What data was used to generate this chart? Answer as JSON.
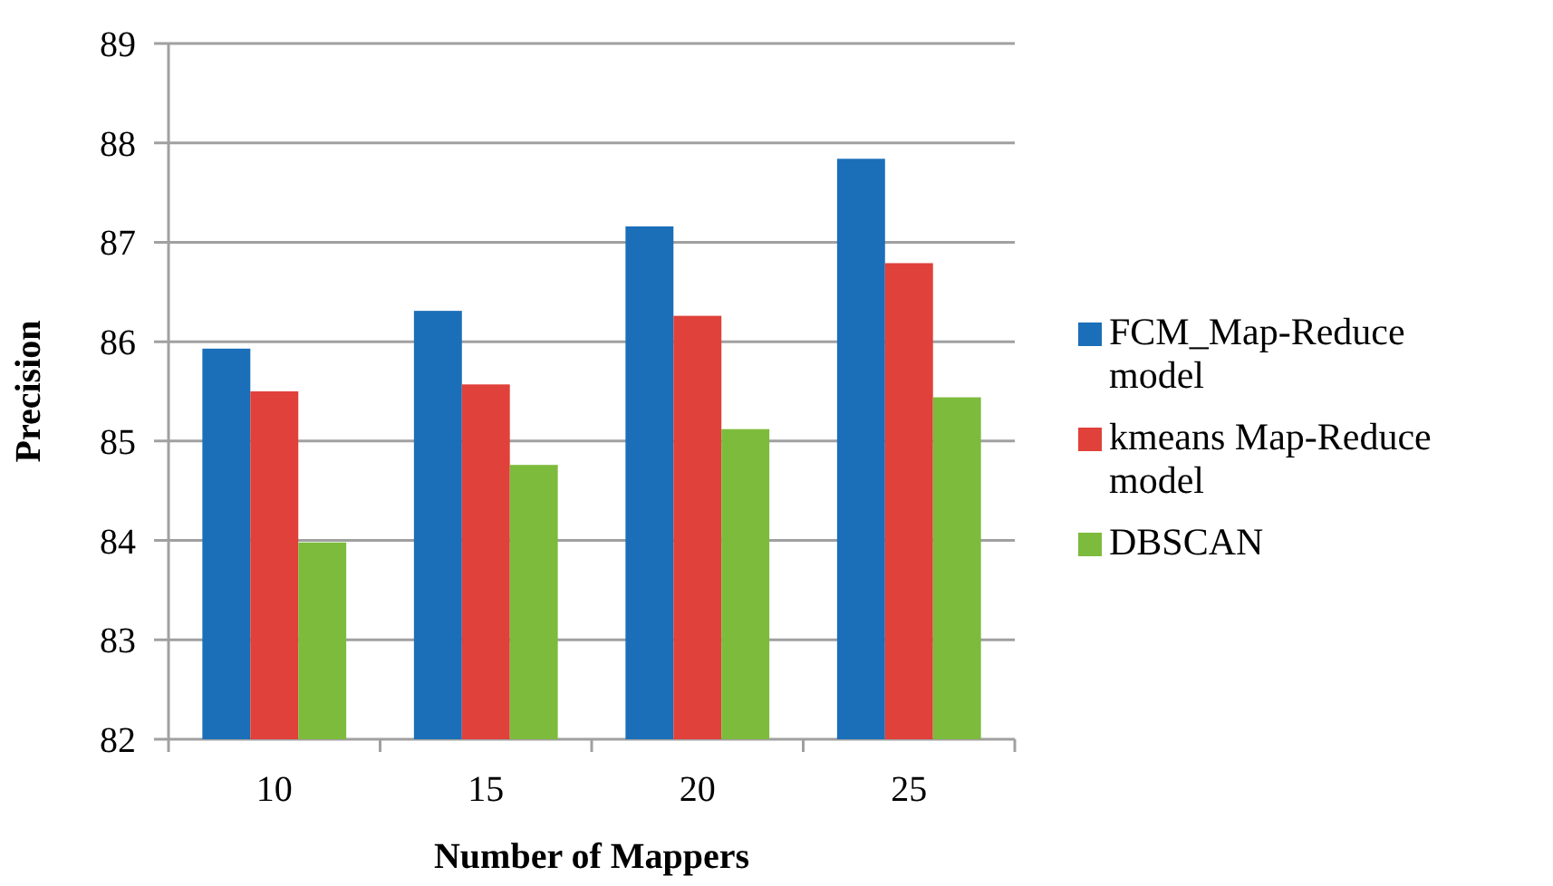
{
  "chart_data": {
    "type": "bar",
    "xlabel": "Number of Mappers",
    "ylabel": "Precision",
    "categories": [
      "10",
      "15",
      "20",
      "25"
    ],
    "series": [
      {
        "name": "FCM_Map-Reduce model",
        "color": "#1a6fb8",
        "values": [
          85.93,
          86.31,
          87.16,
          87.84
        ]
      },
      {
        "name": "kmeans Map-Reduce model",
        "color": "#e0413a",
        "values": [
          85.5,
          85.57,
          86.26,
          86.79
        ]
      },
      {
        "name": "DBSCAN",
        "color": "#7dbb3c",
        "values": [
          83.98,
          84.76,
          85.12,
          85.44
        ]
      }
    ],
    "ylim": [
      82,
      89
    ],
    "yticks": [
      82,
      83,
      84,
      85,
      86,
      87,
      88,
      89
    ],
    "grid": "y",
    "legend": "right"
  }
}
